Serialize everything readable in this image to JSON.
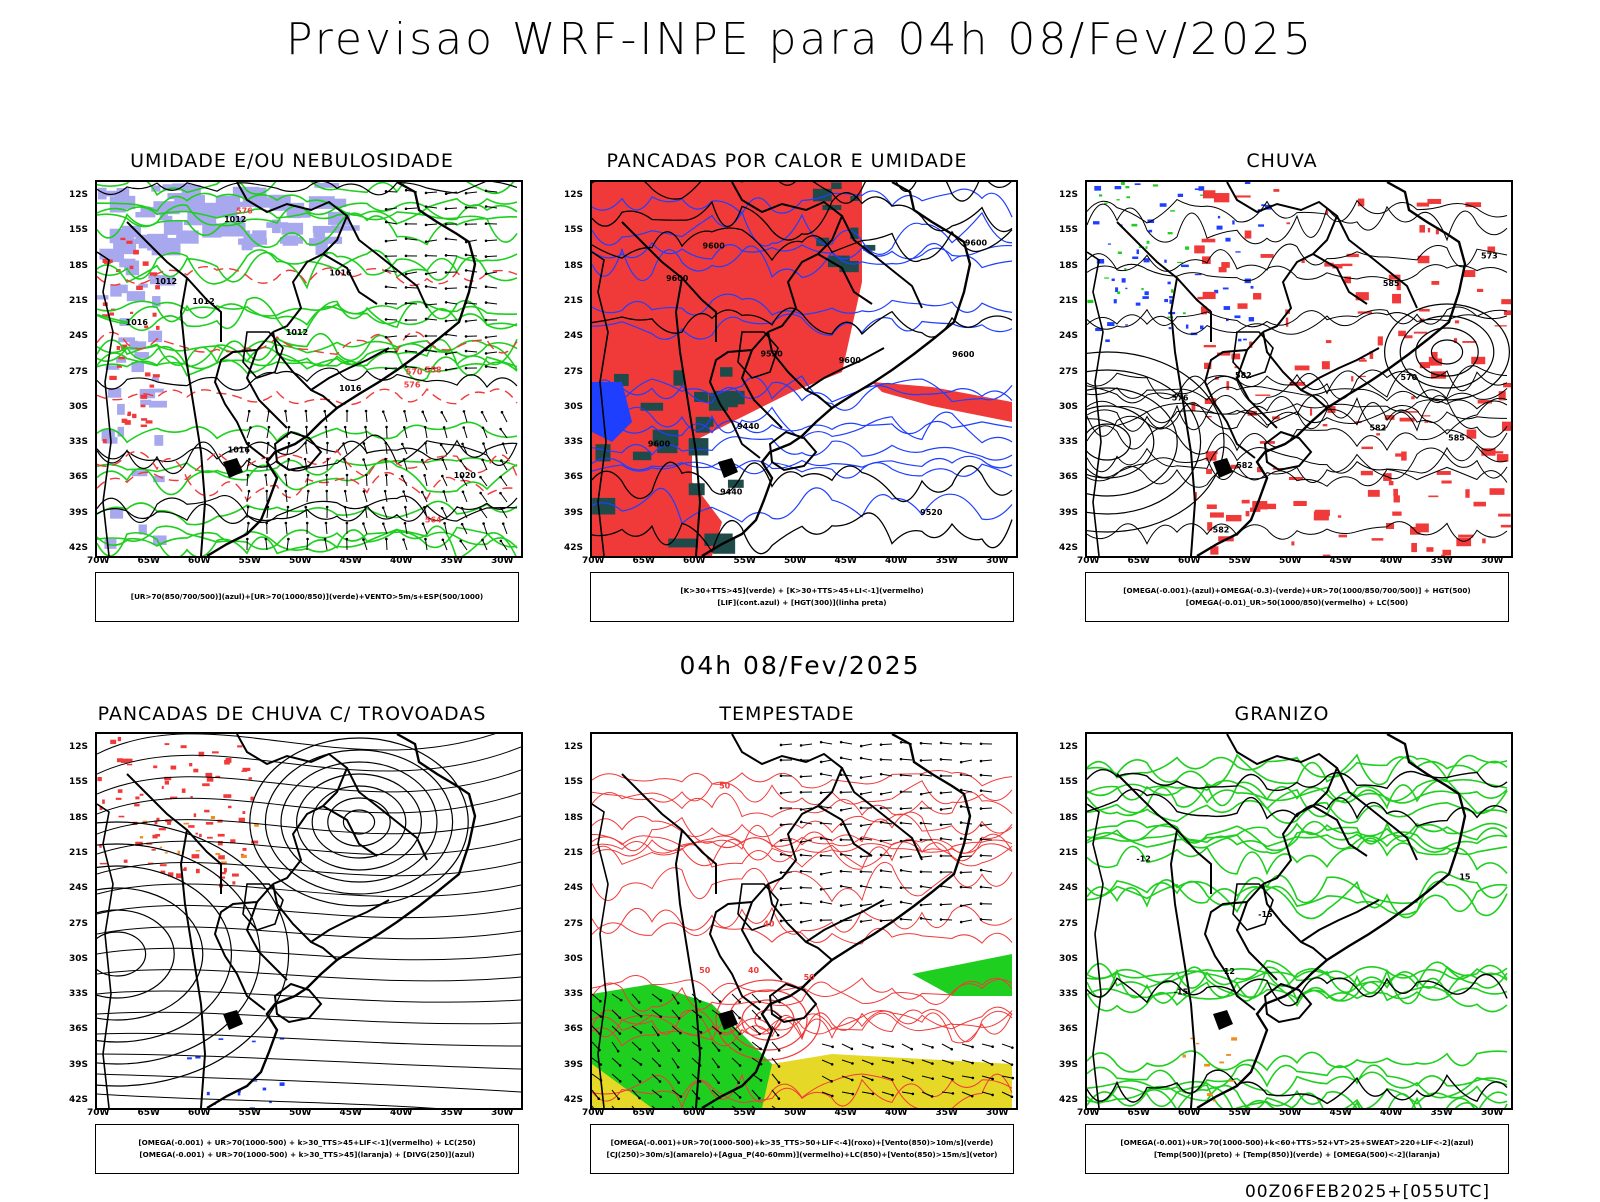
{
  "title": "Previsao WRF-INPE  para 04h 08/Fev/2025",
  "mid_time": "04h 08/Fev/2025",
  "footer": "00Z06FEB2025+[055UTC]",
  "axes": {
    "lat": [
      "12S",
      "15S",
      "18S",
      "21S",
      "24S",
      "27S",
      "30S",
      "33S",
      "36S",
      "39S",
      "42S"
    ],
    "lon": [
      "70W",
      "65W",
      "60W",
      "55W",
      "50W",
      "45W",
      "40W",
      "35W",
      "30W"
    ]
  },
  "panels": [
    {
      "title": "UMIDADE E/OU NEBULOSIDADE",
      "legend": [
        "[UR>70(850/700/500)](azul)+[UR>70(1000/850)](verde)+VENTO>5m/s+ESP(500/1000)"
      ],
      "contour_labels": [
        "1012",
        "1012",
        "1012",
        "1012",
        "1016",
        "1016",
        "1016",
        "1016",
        "1020",
        "576",
        "576",
        "570",
        "564",
        "558"
      ]
    },
    {
      "title": "PANCADAS POR CALOR E UMIDADE",
      "legend": [
        "[K>30+TTS>45](verde) + [K>30+TTS>45+LI<-1](vermelho)",
        "[LIF](cont.azul) + [HGT(300)](linha preta)"
      ],
      "contour_labels": [
        "9600",
        "9600",
        "9520",
        "9520",
        "9600",
        "9600",
        "9600",
        "9440",
        "9440",
        "9600"
      ]
    },
    {
      "title": "CHUVA",
      "legend": [
        "[OMEGA(-0.001)-(azul)+OMEGA(-0.3)-(verde)+UR>70(1000/850/700/500)] + HGT(500)",
        "[OMEGA(-0.01)_UR>50(1000/850)(vermelho) + LC(500)"
      ],
      "contour_labels": [
        "582",
        "582",
        "582",
        "582",
        "585",
        "585",
        "576",
        "573",
        "570"
      ]
    },
    {
      "title": "PANCADAS DE CHUVA C/ TROVOADAS",
      "legend": [
        "[OMEGA(-0.001) + UR>70(1000-500) + k>30_TTS>45+LIF<-1](vermelho) + LC(250)",
        "[OMEGA(-0.001) + UR>70(1000-500) + k>30_TTS>45](laranja) + [DIVG(250)](azul)"
      ],
      "contour_labels": []
    },
    {
      "title": "TEMPESTADE",
      "legend": [
        "[OMEGA(-0.001)+UR>70(1000-500)+k>35_TTS>50+LIF<-4](roxo)+[Vento(850)>10m/s](verde)",
        "[CJ(250)>30m/s](amarelo)+[Agua_P(40-60mm)](vermelho)+LC(850)+[Vento(850)>15m/s](vetor)"
      ],
      "contour_labels": [
        "40",
        "50",
        "50",
        "40",
        "50"
      ]
    },
    {
      "title": "GRANIZO",
      "legend": [
        "[OMEGA(-0.001)+UR>70(1000-500)+k<60+TTS>52+VT>25+SWEAT>220+LIF<-2](azul)",
        "[Temp(500)](preto) + [Temp(850)](verde) + [OMEGA(500)<-2](laranja)"
      ],
      "contour_labels": [
        "-15",
        "-12",
        "-15",
        "15",
        "12"
      ]
    }
  ],
  "colors": {
    "red": "#f03a3a",
    "green": "#1fcf1f",
    "blue": "#1f3fff",
    "lavender": "#a8a8ee",
    "teal": "#1f4a4a",
    "yellow": "#e5d826",
    "orange": "#f08c1e"
  }
}
